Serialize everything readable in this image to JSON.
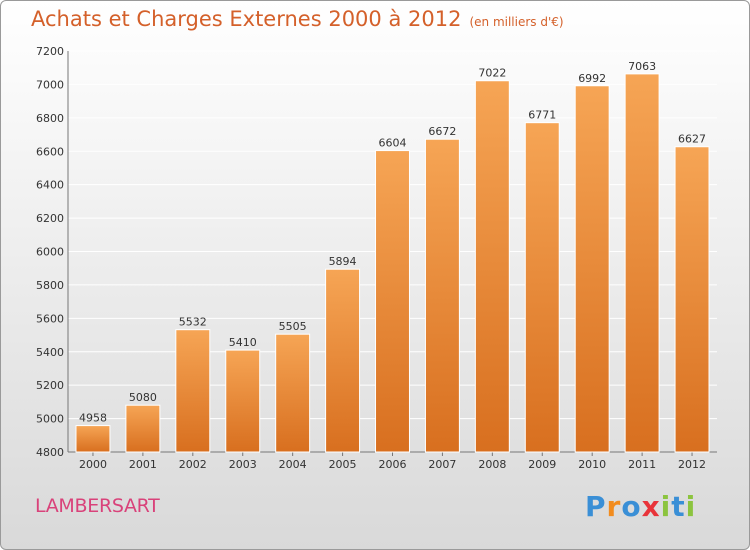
{
  "header": {
    "title": "Achats et Charges Externes 2000 à 2012",
    "subtitle": "(en milliers d'€)"
  },
  "footer": {
    "city": "LAMBERSART",
    "logo": {
      "letters": [
        {
          "char": "P",
          "color": "#3a8fd6"
        },
        {
          "char": "r",
          "color": "#f28c1e"
        },
        {
          "char": "o",
          "color": "#3a8fd6"
        },
        {
          "char": "x",
          "color": "#e8343a"
        },
        {
          "char": "i",
          "color": "#8cc43f"
        },
        {
          "char": "t",
          "color": "#3a8fd6"
        },
        {
          "char": "i",
          "color": "#8cc43f"
        }
      ]
    }
  },
  "colors": {
    "bar_light": "#f6a555",
    "bar_dark": "#d86f1f",
    "title": "#d4602a",
    "city": "#d9427a"
  },
  "chart_data": {
    "type": "bar",
    "title": "Achats et Charges Externes 2000 à 2012",
    "subtitle": "(en milliers d'€)",
    "categories": [
      "2000",
      "2001",
      "2002",
      "2003",
      "2004",
      "2005",
      "2006",
      "2007",
      "2008",
      "2009",
      "2010",
      "2011",
      "2012"
    ],
    "values": [
      4958,
      5080,
      5532,
      5410,
      5505,
      5894,
      6604,
      6672,
      7022,
      6771,
      6992,
      7063,
      6627
    ],
    "ylim": [
      4800,
      7200
    ],
    "yticks": [
      4800,
      5000,
      5200,
      5400,
      5600,
      5800,
      6000,
      6200,
      6400,
      6600,
      6800,
      7000,
      7200
    ],
    "grid": true,
    "data_labels": true,
    "xlabel": "",
    "ylabel": ""
  }
}
